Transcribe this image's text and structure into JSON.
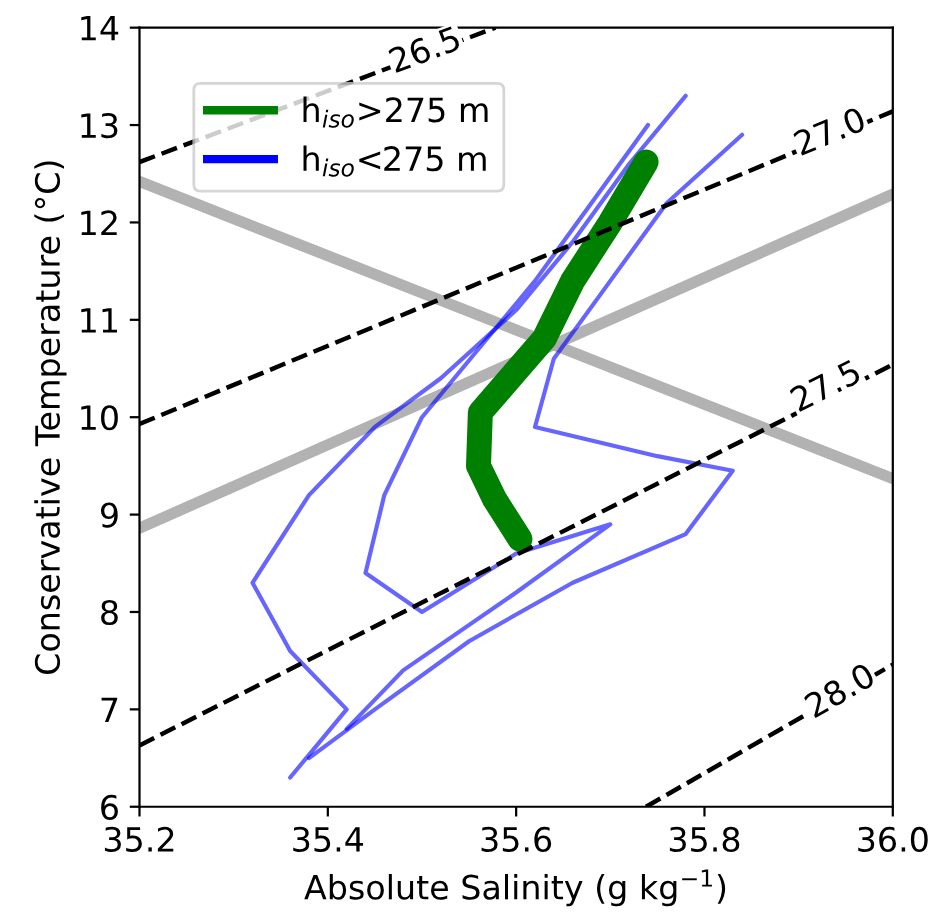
{
  "chart_data": {
    "type": "line",
    "xlabel": "Absolute Salinity (g kg$^{−1}$)",
    "ylabel": "Conservative Temperature (°C)",
    "xlim": [
      35.2,
      36.0
    ],
    "xticks": [
      {
        "value": 35.2,
        "label": "35.2"
      },
      {
        "value": 35.4,
        "label": "35.4"
      },
      {
        "value": 35.6,
        "label": "35.6"
      },
      {
        "value": 35.8,
        "label": "35.8"
      },
      {
        "value": 36.0,
        "label": "36.0"
      }
    ],
    "ylim": [
      6,
      14
    ],
    "yticks": [
      6,
      7,
      8,
      9,
      10,
      11,
      12,
      13,
      14
    ],
    "legend": "top left",
    "grid": false,
    "marker": "none",
    "series": [
      {
        "color": "#aaaaaa",
        "line_style": "solid",
        "x": [
          35.2,
          36.0
        ],
        "values": [
          12.42,
          9.37
        ]
      },
      {
        "color": "#aaaaaa",
        "line_style": "solid",
        "x": [
          35.2,
          36.0
        ],
        "values": [
          8.86,
          12.29
        ]
      },
      {
        "name": "h$_{iso}$<275 m",
        "color": "#0000ff",
        "line_style": "solid",
        "x": [
          35.78,
          35.72,
          35.66,
          35.6,
          35.52,
          35.45,
          35.38,
          35.32,
          35.36,
          35.42,
          35.36
        ],
        "values": [
          13.3,
          12.6,
          11.8,
          11.1,
          10.4,
          9.9,
          9.2,
          8.3,
          7.6,
          7.0,
          6.3
        ]
      },
      {
        "color": "#0000ff",
        "line_style": "solid",
        "x": [
          35.84,
          35.76,
          35.7,
          35.64,
          35.62,
          35.75,
          35.83,
          35.78,
          35.66,
          35.55,
          35.45,
          35.38
        ],
        "values": [
          12.9,
          12.2,
          11.4,
          10.6,
          9.9,
          9.6,
          9.45,
          8.8,
          8.3,
          7.7,
          7.0,
          6.5
        ]
      },
      {
        "color": "#0000ff",
        "line_style": "solid",
        "x": [
          35.74,
          35.68,
          35.62,
          35.56,
          35.5,
          35.46,
          35.44,
          35.5,
          35.6,
          35.7,
          35.6,
          35.48,
          35.42
        ],
        "values": [
          13.0,
          12.2,
          11.4,
          10.7,
          10.0,
          9.2,
          8.4,
          8.0,
          8.6,
          8.9,
          8.2,
          7.4,
          6.8
        ]
      },
      {
        "name": "h$_{iso}$>275 m",
        "color": "#008000",
        "line_style": "solid",
        "x": [
          35.738,
          35.7,
          35.66,
          35.63,
          35.562,
          35.56,
          35.577,
          35.604
        ],
        "values": [
          12.62,
          12.0,
          11.4,
          10.81,
          10.05,
          9.5,
          9.16,
          8.75
        ]
      },
      {
        "color": "#000000",
        "line_style": "dashed",
        "x": [
          35.2,
          35.578
        ],
        "values": [
          12.62,
          14
        ]
      },
      {
        "color": "#000000",
        "line_style": "dashed",
        "x": [
          35.2,
          36.0
        ],
        "values": [
          9.93,
          13.14
        ]
      },
      {
        "color": "#000000",
        "line_style": "dashed",
        "x": [
          35.2,
          36.0
        ],
        "values": [
          6.63,
          10.54
        ]
      },
      {
        "color": "#000000",
        "line_style": "dashed",
        "x": [
          35.738,
          36.0
        ],
        "values": [
          6,
          7.46
        ]
      }
    ],
    "annotations": [
      {
        "text": "26.5",
        "x": 35.504,
        "y": 13.75
      },
      {
        "text": "27.0",
        "x": 35.934,
        "y": 12.91
      },
      {
        "text": "27.5",
        "x": 35.93,
        "y": 10.3
      },
      {
        "text": "28.0",
        "x": 35.945,
        "y": 7.17
      }
    ]
  }
}
